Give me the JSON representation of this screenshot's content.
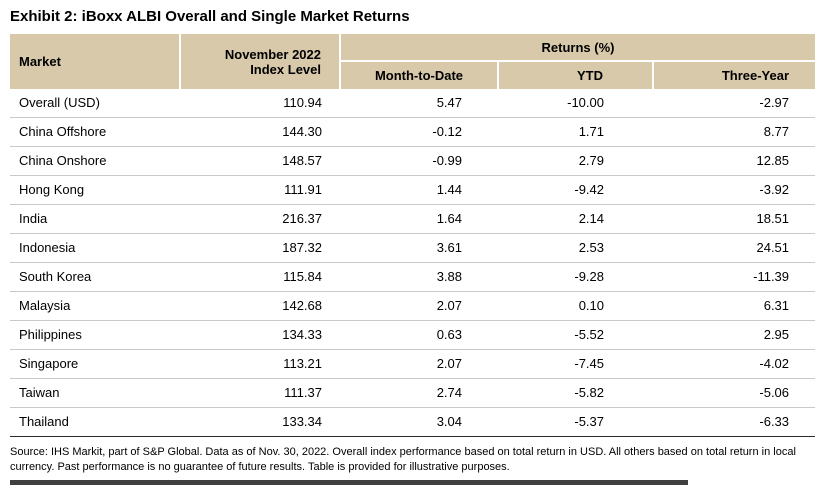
{
  "title": "Exhibit 2: iBoxx ALBI Overall and Single Market Returns",
  "table": {
    "headers": {
      "market": "Market",
      "index_level": "November 2022\nIndex Level",
      "returns_group": "Returns (%)",
      "mtd": "Month-to-Date",
      "ytd": "YTD",
      "three_year": "Three-Year"
    },
    "rows": [
      {
        "market": "Overall (USD)",
        "index_level": "110.94",
        "mtd": "5.47",
        "ytd": "-10.00",
        "three_year": "-2.97"
      },
      {
        "market": "China Offshore",
        "index_level": "144.30",
        "mtd": "-0.12",
        "ytd": "1.71",
        "three_year": "8.77"
      },
      {
        "market": "China Onshore",
        "index_level": "148.57",
        "mtd": "-0.99",
        "ytd": "2.79",
        "three_year": "12.85"
      },
      {
        "market": "Hong Kong",
        "index_level": "111.91",
        "mtd": "1.44",
        "ytd": "-9.42",
        "three_year": "-3.92"
      },
      {
        "market": "India",
        "index_level": "216.37",
        "mtd": "1.64",
        "ytd": "2.14",
        "three_year": "18.51"
      },
      {
        "market": "Indonesia",
        "index_level": "187.32",
        "mtd": "3.61",
        "ytd": "2.53",
        "three_year": "24.51"
      },
      {
        "market": "South Korea",
        "index_level": "115.84",
        "mtd": "3.88",
        "ytd": "-9.28",
        "three_year": "-11.39"
      },
      {
        "market": "Malaysia",
        "index_level": "142.68",
        "mtd": "2.07",
        "ytd": "0.10",
        "three_year": "6.31"
      },
      {
        "market": "Philippines",
        "index_level": "134.33",
        "mtd": "0.63",
        "ytd": "-5.52",
        "three_year": "2.95"
      },
      {
        "market": "Singapore",
        "index_level": "113.21",
        "mtd": "2.07",
        "ytd": "-7.45",
        "three_year": "-4.02"
      },
      {
        "market": "Taiwan",
        "index_level": "111.37",
        "mtd": "2.74",
        "ytd": "-5.82",
        "three_year": "-5.06"
      },
      {
        "market": "Thailand",
        "index_level": "133.34",
        "mtd": "3.04",
        "ytd": "-5.37",
        "three_year": "-6.33"
      }
    ]
  },
  "footnote": "Source: IHS Markit, part of S&P Global.  Data as of Nov. 30, 2022.  Overall index performance based on total return in USD.  All others based on total return in local currency.  Past performance is no guarantee of future results.  Table is provided for illustrative purposes.",
  "colors": {
    "header_bg": "#d8c9ab"
  }
}
